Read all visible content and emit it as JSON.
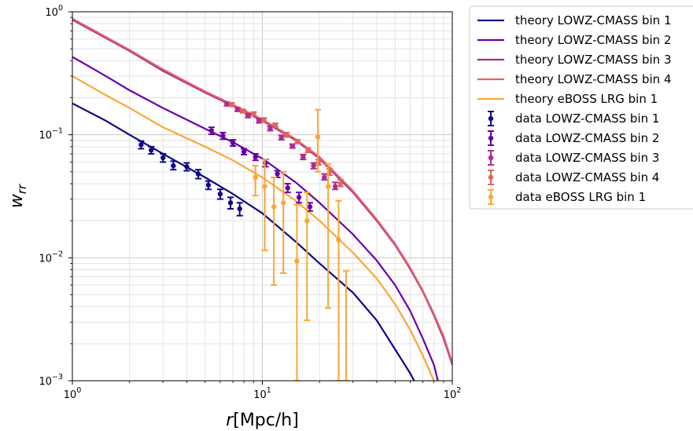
{
  "chart_data": {
    "type": "line",
    "xlabel": "r[Mpc/h]",
    "ylabel": "w_rr",
    "xscale": "log",
    "yscale": "log",
    "xlim": [
      1,
      100
    ],
    "ylim": [
      0.001,
      1
    ],
    "x_ticks": [
      {
        "base": "10",
        "exp": "0"
      },
      {
        "base": "10",
        "exp": "1"
      },
      {
        "base": "10",
        "exp": "2"
      }
    ],
    "y_ticks": [
      {
        "base": "10",
        "exp": "−3"
      },
      {
        "base": "10",
        "exp": "−2"
      },
      {
        "base": "10",
        "exp": "−1"
      },
      {
        "base": "10",
        "exp": "0"
      }
    ],
    "grid": true,
    "legend_position": "outside-top-right",
    "theory": [
      {
        "name": "theory LOWZ-CMASS bin 1",
        "color": "#0d0887",
        "x": [
          1,
          1.5,
          2,
          3,
          5,
          7,
          10,
          15,
          20,
          30,
          40,
          50,
          60,
          63
        ],
        "y": [
          0.18,
          0.13,
          0.1,
          0.07,
          0.045,
          0.033,
          0.023,
          0.0135,
          0.009,
          0.0052,
          0.0031,
          0.0018,
          0.00115,
          0.001
        ]
      },
      {
        "name": "theory LOWZ-CMASS bin 2",
        "color": "#6a00a8",
        "x": [
          1,
          1.5,
          2,
          3,
          5,
          7,
          10,
          15,
          20,
          30,
          40,
          50,
          60,
          70,
          80,
          84
        ],
        "y": [
          0.43,
          0.3,
          0.23,
          0.165,
          0.112,
          0.087,
          0.064,
          0.041,
          0.028,
          0.0155,
          0.0095,
          0.006,
          0.0037,
          0.0022,
          0.00135,
          0.001
        ]
      },
      {
        "name": "theory LOWZ-CMASS bin 3",
        "color": "#b12a90",
        "x": [
          1,
          2,
          3,
          5,
          7,
          10,
          15,
          20,
          30,
          40,
          50,
          60,
          70,
          80,
          90,
          100
        ],
        "y": [
          0.86,
          0.48,
          0.33,
          0.22,
          0.172,
          0.13,
          0.09,
          0.064,
          0.034,
          0.02,
          0.0127,
          0.0081,
          0.0053,
          0.0034,
          0.0022,
          0.00135
        ]
      },
      {
        "name": "theory LOWZ-CMASS bin 4",
        "color": "#e16462",
        "x": [
          1,
          2,
          3,
          5,
          7,
          10,
          15,
          20,
          30,
          40,
          50,
          60,
          70,
          80,
          90,
          100
        ],
        "y": [
          0.88,
          0.49,
          0.34,
          0.225,
          0.176,
          0.133,
          0.092,
          0.066,
          0.035,
          0.0205,
          0.013,
          0.0083,
          0.0054,
          0.0035,
          0.0023,
          0.0014
        ]
      },
      {
        "name": "theory eBOSS LRG bin 1",
        "color": "#fca636",
        "x": [
          1,
          1.5,
          2,
          3,
          5,
          7,
          10,
          15,
          20,
          30,
          40,
          50,
          60,
          70,
          80
        ],
        "y": [
          0.3,
          0.21,
          0.165,
          0.115,
          0.08,
          0.062,
          0.045,
          0.029,
          0.02,
          0.011,
          0.0068,
          0.0042,
          0.0026,
          0.0016,
          0.001
        ]
      }
    ],
    "data": [
      {
        "name": "data LOWZ-CMASS bin 1",
        "color": "#0d0887",
        "x": [
          2.3,
          2.6,
          3.0,
          3.4,
          4.0,
          4.6,
          5.2,
          6.0,
          6.8,
          7.6
        ],
        "y": [
          0.083,
          0.075,
          0.065,
          0.056,
          0.055,
          0.048,
          0.039,
          0.033,
          0.028,
          0.025
        ],
        "yerr_lo": [
          0.077,
          0.07,
          0.06,
          0.052,
          0.051,
          0.044,
          0.036,
          0.03,
          0.025,
          0.022
        ],
        "yerr_hi": [
          0.089,
          0.08,
          0.07,
          0.061,
          0.059,
          0.052,
          0.042,
          0.036,
          0.031,
          0.028
        ]
      },
      {
        "name": "data LOWZ-CMASS bin 2",
        "color": "#6a00a8",
        "x": [
          5.4,
          6.2,
          7.0,
          8.0,
          9.2,
          10.4,
          12.0,
          13.6,
          15.6,
          17.8
        ],
        "y": [
          0.108,
          0.098,
          0.086,
          0.073,
          0.066,
          0.059,
          0.048,
          0.037,
          0.031,
          0.026
        ],
        "yerr_lo": [
          0.101,
          0.092,
          0.081,
          0.069,
          0.062,
          0.055,
          0.045,
          0.034,
          0.028,
          0.024
        ],
        "yerr_hi": [
          0.115,
          0.104,
          0.091,
          0.077,
          0.07,
          0.063,
          0.051,
          0.04,
          0.034,
          0.028
        ]
      },
      {
        "name": "data LOWZ-CMASS bin 3",
        "color": "#b12a90",
        "x": [
          6.5,
          7.4,
          8.4,
          9.6,
          11.0,
          12.6,
          14.4,
          16.4,
          18.6,
          21.2,
          24.2
        ],
        "y": [
          0.178,
          0.16,
          0.143,
          0.13,
          0.112,
          0.095,
          0.081,
          0.066,
          0.056,
          0.045,
          0.038
        ],
        "yerr_lo": [
          0.172,
          0.155,
          0.138,
          0.125,
          0.108,
          0.091,
          0.078,
          0.063,
          0.053,
          0.043,
          0.036
        ],
        "yerr_hi": [
          0.184,
          0.166,
          0.148,
          0.135,
          0.117,
          0.099,
          0.084,
          0.069,
          0.059,
          0.048,
          0.041
        ]
      },
      {
        "name": "data LOWZ-CMASS bin 4",
        "color": "#e16462",
        "x": [
          6.9,
          7.9,
          9.0,
          10.2,
          11.7,
          13.4,
          15.3,
          17.4,
          19.8,
          22.6,
          25.8
        ],
        "y": [
          0.176,
          0.156,
          0.148,
          0.132,
          0.12,
          0.1,
          0.088,
          0.075,
          0.06,
          0.05,
          0.04
        ],
        "yerr_lo": [
          0.17,
          0.151,
          0.143,
          0.127,
          0.116,
          0.096,
          0.085,
          0.072,
          0.057,
          0.047,
          0.038
        ],
        "yerr_hi": [
          0.182,
          0.161,
          0.153,
          0.137,
          0.124,
          0.104,
          0.091,
          0.078,
          0.063,
          0.053,
          0.043
        ]
      },
      {
        "name": "data eBOSS LRG bin 1",
        "color": "#fca636",
        "x": [
          9.2,
          10.3,
          11.5,
          12.9,
          15.2,
          17.2,
          19.6,
          22.2,
          25.2,
          27.6
        ],
        "y": [
          0.045,
          0.038,
          0.026,
          0.028,
          0.0094,
          0.02,
          0.096,
          0.038,
          0.014,
          0.0007
        ],
        "yerr_lo": [
          0.032,
          0.0115,
          0.006,
          0.0075,
          0.0009,
          0.0031,
          0.05,
          0.0039,
          0.0009,
          0.0009
        ],
        "yerr_hi": [
          0.056,
          0.063,
          0.045,
          0.05,
          0.027,
          0.034,
          0.16,
          0.058,
          0.029,
          0.0078
        ]
      }
    ]
  }
}
